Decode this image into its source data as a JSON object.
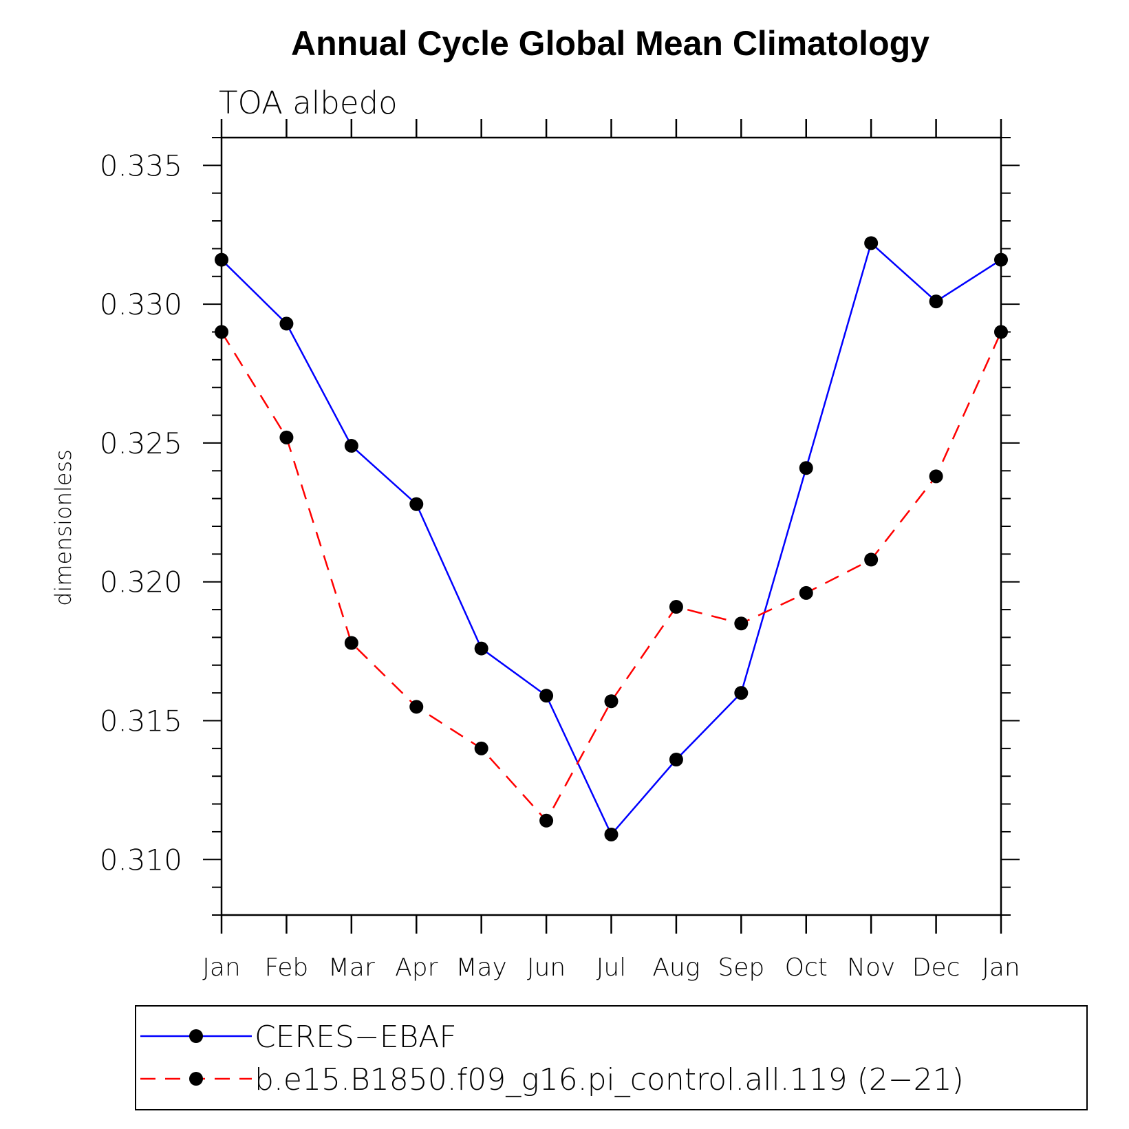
{
  "chart_data": {
    "type": "line",
    "title": "Annual Cycle Global Mean Climatology",
    "subtitle": "TOA albedo",
    "xlabel": "",
    "ylabel": "dimensionless",
    "categories": [
      "Jan",
      "Feb",
      "Mar",
      "Apr",
      "May",
      "Jun",
      "Jul",
      "Aug",
      "Sep",
      "Oct",
      "Nov",
      "Dec",
      "Jan"
    ],
    "ylim": [
      0.308,
      0.336
    ],
    "y_ticks": [
      "0.310",
      "0.315",
      "0.320",
      "0.325",
      "0.330",
      "0.335"
    ],
    "grid": false,
    "legend_position": "bottom",
    "series": [
      {
        "name": "CERES−EBAF",
        "color": "#0000ff",
        "line_style": "solid",
        "values": [
          0.3316,
          0.3293,
          0.3249,
          0.3228,
          0.3176,
          0.3159,
          0.3109,
          0.3136,
          0.316,
          0.3241,
          0.3322,
          0.3301,
          0.3316
        ]
      },
      {
        "name": "b.e15.B1850.f09_g16.pi_control.all.119 (2−21)",
        "color": "#ff0000",
        "line_style": "dashed",
        "values": [
          0.329,
          0.3252,
          0.3178,
          0.3155,
          0.314,
          0.3114,
          0.3157,
          0.3191,
          0.3185,
          0.3196,
          0.3208,
          0.3238,
          0.329
        ]
      }
    ]
  }
}
